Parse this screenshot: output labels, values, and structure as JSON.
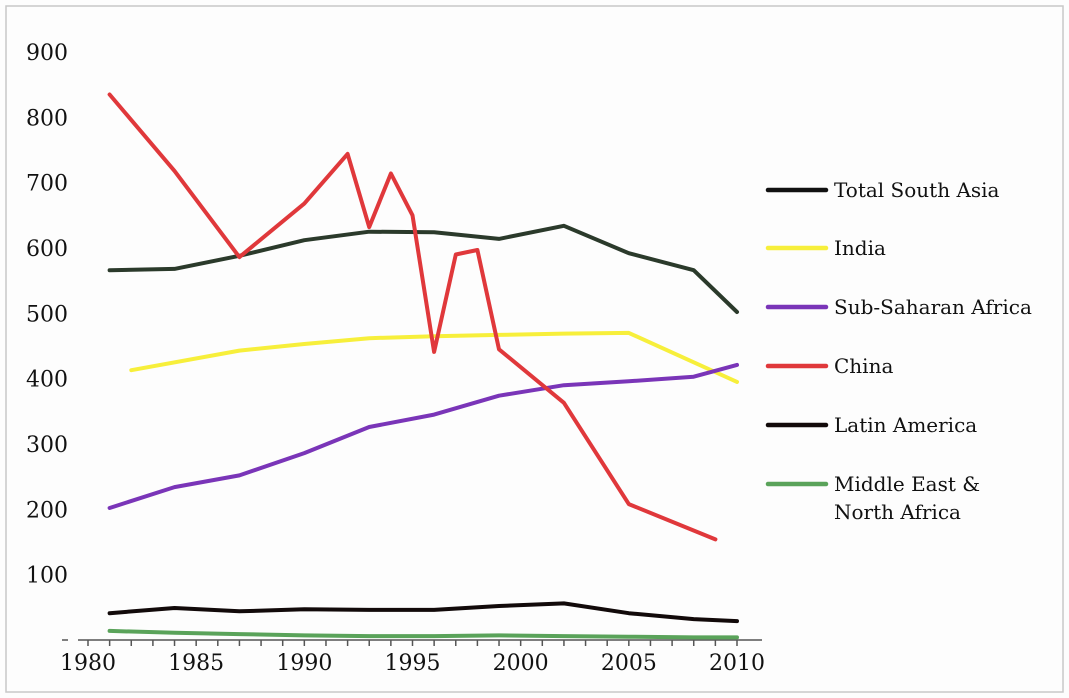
{
  "chart_data": {
    "type": "line",
    "title": "",
    "xlabel": "",
    "ylabel": "",
    "xlim": [
      1980,
      2010
    ],
    "ylim": [
      0,
      900
    ],
    "x_ticks": [
      1980,
      1985,
      1990,
      1995,
      2000,
      2005,
      2010
    ],
    "y_ticks": [
      100,
      200,
      300,
      400,
      500,
      600,
      700,
      800,
      900
    ],
    "y_tick_labels": [
      "100",
      "200",
      "300",
      "400",
      "500",
      "600",
      "700",
      "800",
      "900"
    ],
    "x_tick_labels": [
      "1980",
      "1985",
      "1990",
      "1995",
      "2000",
      "2005",
      "2010"
    ],
    "grid": false,
    "legend_position": "right",
    "series": [
      {
        "name": "Total South Asia",
        "color": "#2b3a2b",
        "legend_color": "#111111",
        "points": [
          [
            1981,
            566
          ],
          [
            1984,
            568
          ],
          [
            1987,
            588
          ],
          [
            1990,
            612
          ],
          [
            1993,
            625
          ],
          [
            1996,
            624
          ],
          [
            1999,
            614
          ],
          [
            2002,
            634
          ],
          [
            2005,
            592
          ],
          [
            2008,
            566
          ],
          [
            2010,
            502
          ]
        ]
      },
      {
        "name": "India",
        "color": "#f7ef3b",
        "legend_color": "#f7ef3b",
        "points": [
          [
            1982,
            413
          ],
          [
            1987,
            443
          ],
          [
            1990,
            453
          ],
          [
            1993,
            462
          ],
          [
            1996,
            465
          ],
          [
            1999,
            467
          ],
          [
            2002,
            469
          ],
          [
            2005,
            470
          ],
          [
            2010,
            395
          ]
        ]
      },
      {
        "name": "Sub-Saharan Africa",
        "color": "#7a35b8",
        "legend_color": "#7a35b8",
        "points": [
          [
            1981,
            202
          ],
          [
            1984,
            234
          ],
          [
            1987,
            252
          ],
          [
            1990,
            286
          ],
          [
            1993,
            326
          ],
          [
            1996,
            345
          ],
          [
            1999,
            374
          ],
          [
            2002,
            390
          ],
          [
            2005,
            396
          ],
          [
            2008,
            403
          ],
          [
            2010,
            421
          ]
        ]
      },
      {
        "name": "China",
        "color": "#e0383b",
        "legend_color": "#e0383b",
        "points": [
          [
            1981,
            835
          ],
          [
            1984,
            718
          ],
          [
            1987,
            586
          ],
          [
            1990,
            668
          ],
          [
            1992,
            744
          ],
          [
            1993,
            632
          ],
          [
            1994,
            714
          ],
          [
            1995,
            650
          ],
          [
            1996,
            441
          ],
          [
            1997,
            590
          ],
          [
            1998,
            597
          ],
          [
            1999,
            445
          ],
          [
            2002,
            363
          ],
          [
            2005,
            208
          ],
          [
            2009,
            154
          ]
        ]
      },
      {
        "name": "Latin America",
        "color": "#120a0a",
        "legend_color": "#120a0a",
        "points": [
          [
            1981,
            41
          ],
          [
            1984,
            49
          ],
          [
            1987,
            44
          ],
          [
            1990,
            47
          ],
          [
            1993,
            46
          ],
          [
            1996,
            46
          ],
          [
            1999,
            52
          ],
          [
            2002,
            56
          ],
          [
            2005,
            41
          ],
          [
            2008,
            32
          ],
          [
            2010,
            29
          ]
        ]
      },
      {
        "name": "Middle East & North Africa",
        "name_lines": [
          "Middle East &",
          "North Africa"
        ],
        "color": "#5aa35a",
        "legend_color": "#5aa35a",
        "points": [
          [
            1981,
            14
          ],
          [
            1984,
            11
          ],
          [
            1987,
            9
          ],
          [
            1990,
            7
          ],
          [
            1993,
            6
          ],
          [
            1996,
            6
          ],
          [
            1999,
            7
          ],
          [
            2002,
            6
          ],
          [
            2005,
            5
          ],
          [
            2008,
            4
          ],
          [
            2010,
            4
          ]
        ]
      }
    ]
  }
}
